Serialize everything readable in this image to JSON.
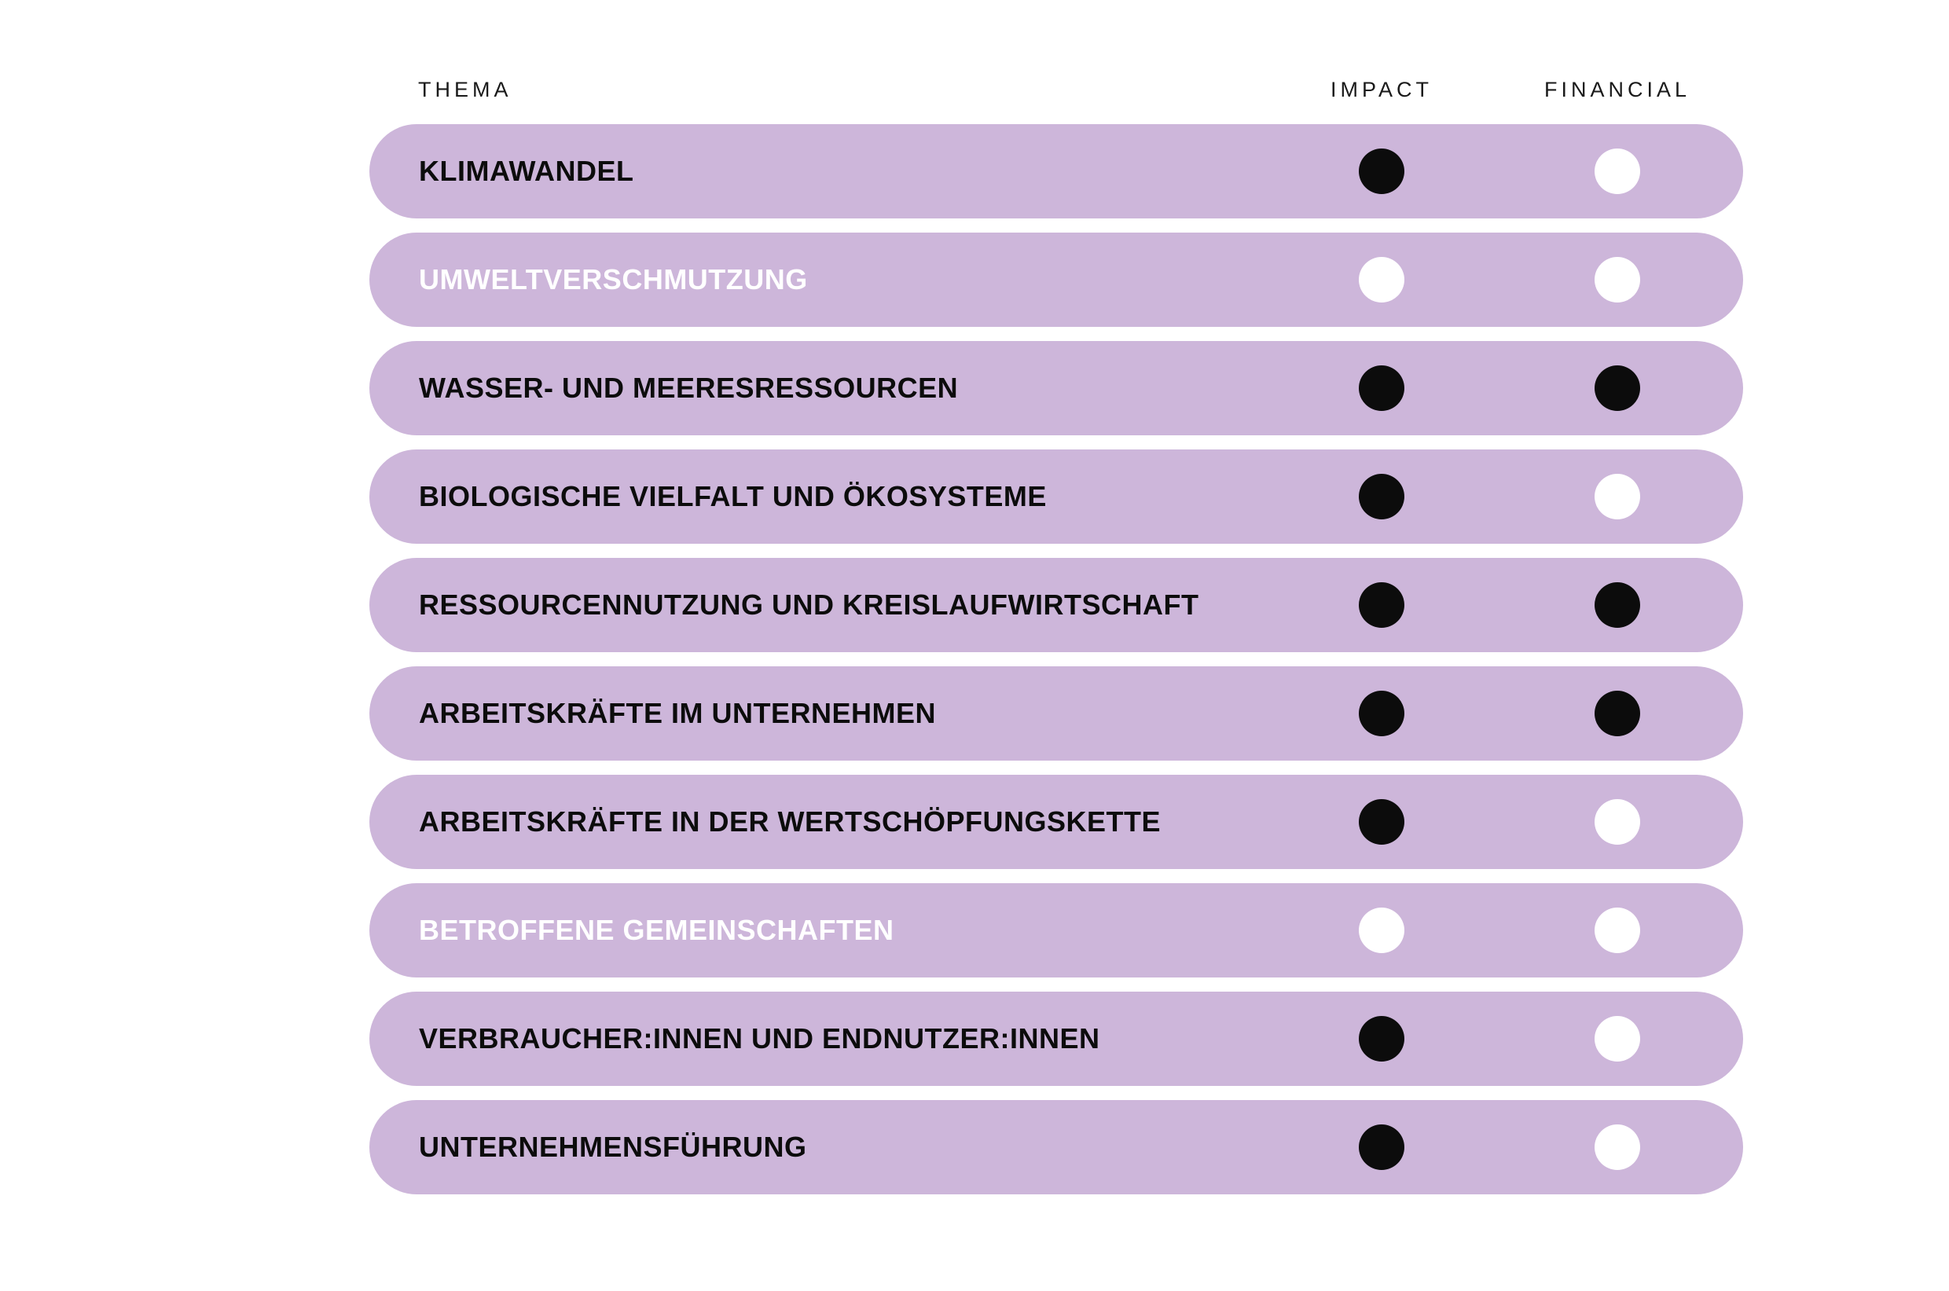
{
  "colors": {
    "background": "#ffffff",
    "pill": "#cdb6da",
    "dot_filled": "#0c0c0c",
    "dot_empty": "#ffffff",
    "label_dark": "#0c0c0c",
    "label_light": "#ffffff",
    "header_text": "#1a1a1a"
  },
  "header": {
    "thema": "THEMA",
    "impact": "IMPACT",
    "financial": "FINANCIAL"
  },
  "table": {
    "rows": [
      {
        "label": "KLIMAWANDEL",
        "impact": "filled",
        "financial": "empty",
        "label_style": "dark"
      },
      {
        "label": "UMWELTVERSCHMUTZUNG",
        "impact": "empty",
        "financial": "empty",
        "label_style": "light"
      },
      {
        "label": "WASSER- UND MEERESRESSOURCEN",
        "impact": "filled",
        "financial": "filled",
        "label_style": "dark"
      },
      {
        "label": "BIOLOGISCHE VIELFALT UND ÖKOSYSTEME",
        "impact": "filled",
        "financial": "empty",
        "label_style": "dark"
      },
      {
        "label": "RESSOURCENNUTZUNG UND KREISLAUFWIRTSCHAFT",
        "impact": "filled",
        "financial": "filled",
        "label_style": "dark"
      },
      {
        "label": "ARBEITSKRÄFTE IM UNTERNEHMEN",
        "impact": "filled",
        "financial": "filled",
        "label_style": "dark"
      },
      {
        "label": "ARBEITSKRÄFTE IN DER WERTSCHÖPFUNGSKETTE",
        "impact": "filled",
        "financial": "empty",
        "label_style": "dark"
      },
      {
        "label": "BETROFFENE GEMEINSCHAFTEN",
        "impact": "empty",
        "financial": "empty",
        "label_style": "light"
      },
      {
        "label": "VERBRAUCHER:INNEN UND ENDNUTZER:INNEN",
        "impact": "filled",
        "financial": "empty",
        "label_style": "dark"
      },
      {
        "label": "UNTERNEHMENSFÜHRUNG",
        "impact": "filled",
        "financial": "empty",
        "label_style": "dark"
      }
    ]
  },
  "chart_data": {
    "type": "table",
    "title": "",
    "columns": [
      "THEMA",
      "IMPACT",
      "FINANCIAL"
    ],
    "rows": [
      {
        "thema": "KLIMAWANDEL",
        "impact": true,
        "financial": false
      },
      {
        "thema": "UMWELTVERSCHMUTZUNG",
        "impact": false,
        "financial": false
      },
      {
        "thema": "WASSER- UND MEERESRESSOURCEN",
        "impact": true,
        "financial": true
      },
      {
        "thema": "BIOLOGISCHE VIELFALT UND ÖKOSYSTEME",
        "impact": true,
        "financial": false
      },
      {
        "thema": "RESSOURCENNUTZUNG UND KREISLAUFWIRTSCHAFT",
        "impact": true,
        "financial": true
      },
      {
        "thema": "ARBEITSKRÄFTE IM UNTERNEHMEN",
        "impact": true,
        "financial": true
      },
      {
        "thema": "ARBEITSKRÄFTE IN DER WERTSCHÖPFUNGSKETTE",
        "impact": true,
        "financial": false
      },
      {
        "thema": "BETROFFENE GEMEINSCHAFTEN",
        "impact": false,
        "financial": false
      },
      {
        "thema": "VERBRAUCHER:INNEN UND ENDNUTZER:INNEN",
        "impact": true,
        "financial": false
      },
      {
        "thema": "UNTERNEHMENSFÜHRUNG",
        "impact": true,
        "financial": false
      }
    ],
    "value_encoding": "true = filled black dot, false = empty white dot; rows with both false show their label in white"
  }
}
